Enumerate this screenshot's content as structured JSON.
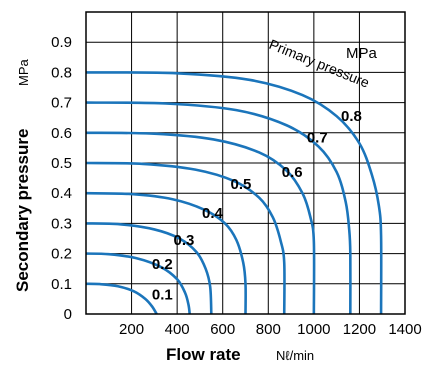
{
  "chart_data": {
    "type": "line",
    "xlabel": "Flow rate",
    "x_unit": "Nℓ/min",
    "ylabel": "Secondary pressure",
    "y_unit": "MPa",
    "legend_title": "Primary pressure",
    "legend_unit": "MPa",
    "xlim": [
      0,
      1400
    ],
    "ylim": [
      0,
      1.0
    ],
    "x_ticks": [
      "200",
      "400",
      "600",
      "800",
      "1000",
      "1200",
      "1400"
    ],
    "y_ticks": [
      "0",
      "0.1",
      "0.2",
      "0.3",
      "0.4",
      "0.5",
      "0.6",
      "0.7",
      "0.8",
      "0.9"
    ],
    "grid": true,
    "curve_color": "#1b75bb",
    "series": [
      {
        "name": "0.1",
        "label_pos": [
          335,
          0.065
        ],
        "points": [
          [
            0,
            0.1
          ],
          [
            60,
            0.099
          ],
          [
            140,
            0.092
          ],
          [
            210,
            0.075
          ],
          [
            260,
            0.05
          ],
          [
            290,
            0.025
          ],
          [
            310,
            0
          ]
        ]
      },
      {
        "name": "0.2",
        "label_pos": [
          335,
          0.165
        ],
        "points": [
          [
            0,
            0.2
          ],
          [
            100,
            0.198
          ],
          [
            220,
            0.185
          ],
          [
            330,
            0.155
          ],
          [
            400,
            0.115
          ],
          [
            435,
            0.07
          ],
          [
            450,
            0.03
          ],
          [
            455,
            0
          ]
        ]
      },
      {
        "name": "0.3",
        "label_pos": [
          430,
          0.245
        ],
        "points": [
          [
            0,
            0.3
          ],
          [
            150,
            0.297
          ],
          [
            300,
            0.28
          ],
          [
            410,
            0.25
          ],
          [
            485,
            0.205
          ],
          [
            525,
            0.15
          ],
          [
            545,
            0.09
          ],
          [
            550,
            0
          ]
        ]
      },
      {
        "name": "0.4",
        "label_pos": [
          555,
          0.335
        ],
        "points": [
          [
            0,
            0.4
          ],
          [
            200,
            0.397
          ],
          [
            380,
            0.38
          ],
          [
            520,
            0.345
          ],
          [
            610,
            0.3
          ],
          [
            660,
            0.245
          ],
          [
            690,
            0.17
          ],
          [
            700,
            0.1
          ],
          [
            700,
            0
          ]
        ]
      },
      {
        "name": "0.5",
        "label_pos": [
          680,
          0.43
        ],
        "points": [
          [
            0,
            0.5
          ],
          [
            250,
            0.497
          ],
          [
            480,
            0.478
          ],
          [
            650,
            0.44
          ],
          [
            760,
            0.385
          ],
          [
            820,
            0.32
          ],
          [
            855,
            0.24
          ],
          [
            870,
            0.17
          ],
          [
            870,
            0
          ]
        ]
      },
      {
        "name": "0.6",
        "label_pos": [
          905,
          0.47
        ],
        "points": [
          [
            0,
            0.6
          ],
          [
            300,
            0.597
          ],
          [
            560,
            0.578
          ],
          [
            760,
            0.535
          ],
          [
            880,
            0.475
          ],
          [
            950,
            0.4
          ],
          [
            985,
            0.32
          ],
          [
            1000,
            0.24
          ],
          [
            1000,
            0
          ]
        ]
      },
      {
        "name": "0.7",
        "label_pos": [
          1015,
          0.585
        ],
        "points": [
          [
            0,
            0.7
          ],
          [
            350,
            0.697
          ],
          [
            660,
            0.675
          ],
          [
            880,
            0.625
          ],
          [
            1020,
            0.555
          ],
          [
            1100,
            0.47
          ],
          [
            1140,
            0.37
          ],
          [
            1155,
            0.28
          ],
          [
            1160,
            0.2
          ],
          [
            1160,
            0
          ]
        ]
      },
      {
        "name": "0.8",
        "label_pos": [
          1165,
          0.655
        ],
        "points": [
          [
            0,
            0.8
          ],
          [
            400,
            0.797
          ],
          [
            720,
            0.775
          ],
          [
            950,
            0.725
          ],
          [
            1100,
            0.655
          ],
          [
            1200,
            0.565
          ],
          [
            1255,
            0.46
          ],
          [
            1285,
            0.36
          ],
          [
            1295,
            0.26
          ],
          [
            1295,
            0
          ]
        ]
      }
    ]
  }
}
